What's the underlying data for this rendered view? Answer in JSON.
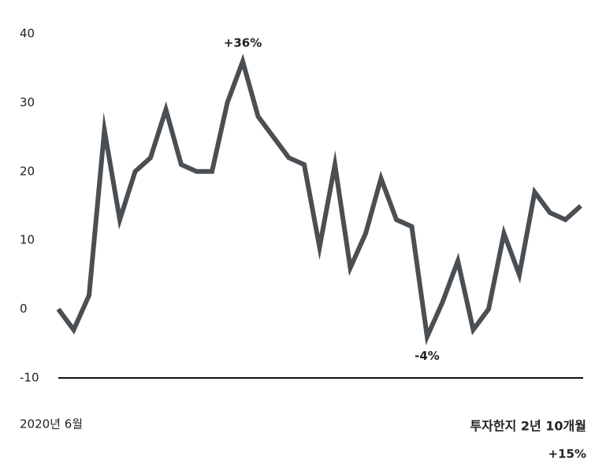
{
  "chart_data": {
    "type": "line",
    "categories": [
      "2020년 6월",
      null,
      null,
      null,
      null,
      null,
      null,
      null,
      null,
      null,
      null,
      null,
      null,
      null,
      null,
      null,
      null,
      null,
      null,
      null,
      null,
      null,
      null,
      null,
      null,
      null,
      null,
      null,
      null,
      null,
      null,
      null,
      null,
      null,
      null
    ],
    "series": [
      {
        "color": "#4a4f54",
        "values": [
          0,
          -3,
          2,
          26,
          13,
          20,
          22,
          29,
          21,
          20,
          20,
          30,
          36,
          28,
          25,
          22,
          21,
          9,
          21,
          6,
          11,
          19,
          13,
          12,
          -4,
          1,
          7,
          -3,
          0,
          11,
          5,
          17,
          14,
          13,
          15
        ]
      }
    ],
    "ylim": [
      -10,
      40
    ],
    "yticks": [
      -10,
      0,
      10,
      20,
      30,
      40
    ],
    "annotations": [
      {
        "text": "+36%",
        "value": 36
      },
      {
        "text": "-4%",
        "value": -4
      }
    ],
    "summary": {
      "label": "투자한지 2년 10개월",
      "value_label": "+15%",
      "value": 15
    }
  }
}
